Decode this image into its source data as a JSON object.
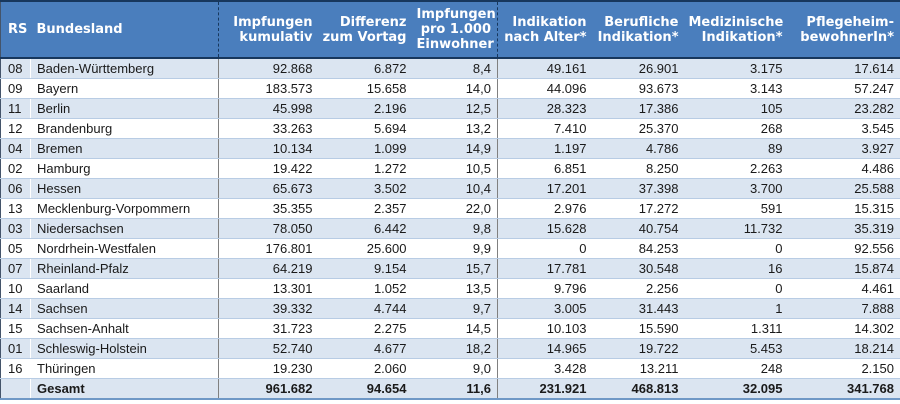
{
  "colors": {
    "header_bg": "#4a7ebd",
    "header_text": "#ffffff",
    "stripe": "#dbe5f1",
    "row_border": "#b8cce4",
    "dark_border": "#17375d",
    "divider": "#808080",
    "edge_border": "#44546a",
    "bottom_border": "#6f98c6",
    "body_text": "#1a1a1a"
  },
  "table": {
    "columns": [
      {
        "key": "rs",
        "label": "RS"
      },
      {
        "key": "bundesland",
        "label": "Bundesland"
      },
      {
        "key": "impfungen-kumulativ",
        "label": "Impfungen\nkumulativ"
      },
      {
        "key": "differenz-zum-vortag",
        "label": "Differenz\nzum Vortag"
      },
      {
        "key": "impfungen-pro-1000-einwohner",
        "label": "Impfungen\npro 1.000\nEinwohner"
      },
      {
        "key": "indikation-nach-alter",
        "label": "Indikation\nnach Alter*"
      },
      {
        "key": "berufliche-indikation",
        "label": "Berufliche\nIndikation*"
      },
      {
        "key": "medizinische-indikation",
        "label": "Medizinische\nIndikation*"
      },
      {
        "key": "pflegeheim-bewohnerin",
        "label": "Pflegeheim-\nbewohnerIn*"
      }
    ],
    "rows": [
      {
        "rs": "08",
        "bundesland": "Baden-Württemberg",
        "values": [
          "92.868",
          "6.872",
          "8,4",
          "49.161",
          "26.901",
          "3.175",
          "17.614"
        ]
      },
      {
        "rs": "09",
        "bundesland": "Bayern",
        "values": [
          "183.573",
          "15.658",
          "14,0",
          "44.096",
          "93.673",
          "3.143",
          "57.247"
        ]
      },
      {
        "rs": "11",
        "bundesland": "Berlin",
        "values": [
          "45.998",
          "2.196",
          "12,5",
          "28.323",
          "17.386",
          "105",
          "23.282"
        ]
      },
      {
        "rs": "12",
        "bundesland": "Brandenburg",
        "values": [
          "33.263",
          "5.694",
          "13,2",
          "7.410",
          "25.370",
          "268",
          "3.545"
        ]
      },
      {
        "rs": "04",
        "bundesland": "Bremen",
        "values": [
          "10.134",
          "1.099",
          "14,9",
          "1.197",
          "4.786",
          "89",
          "3.927"
        ]
      },
      {
        "rs": "02",
        "bundesland": "Hamburg",
        "values": [
          "19.422",
          "1.272",
          "10,5",
          "6.851",
          "8.250",
          "2.263",
          "4.486"
        ]
      },
      {
        "rs": "06",
        "bundesland": "Hessen",
        "values": [
          "65.673",
          "3.502",
          "10,4",
          "17.201",
          "37.398",
          "3.700",
          "25.588"
        ]
      },
      {
        "rs": "13",
        "bundesland": "Mecklenburg-Vorpommern",
        "values": [
          "35.355",
          "2.357",
          "22,0",
          "2.976",
          "17.272",
          "591",
          "15.315"
        ]
      },
      {
        "rs": "03",
        "bundesland": "Niedersachsen",
        "values": [
          "78.050",
          "6.442",
          "9,8",
          "15.628",
          "40.754",
          "11.732",
          "35.319"
        ]
      },
      {
        "rs": "05",
        "bundesland": "Nordrhein-Westfalen",
        "values": [
          "176.801",
          "25.600",
          "9,9",
          "0",
          "84.253",
          "0",
          "92.556"
        ]
      },
      {
        "rs": "07",
        "bundesland": "Rheinland-Pfalz",
        "values": [
          "64.219",
          "9.154",
          "15,7",
          "17.781",
          "30.548",
          "16",
          "15.874"
        ]
      },
      {
        "rs": "10",
        "bundesland": "Saarland",
        "values": [
          "13.301",
          "1.052",
          "13,5",
          "9.796",
          "2.256",
          "0",
          "4.461"
        ]
      },
      {
        "rs": "14",
        "bundesland": "Sachsen",
        "values": [
          "39.332",
          "4.744",
          "9,7",
          "3.005",
          "31.443",
          "1",
          "7.888"
        ]
      },
      {
        "rs": "15",
        "bundesland": "Sachsen-Anhalt",
        "values": [
          "31.723",
          "2.275",
          "14,5",
          "10.103",
          "15.590",
          "1.311",
          "14.302"
        ]
      },
      {
        "rs": "01",
        "bundesland": "Schleswig-Holstein",
        "values": [
          "52.740",
          "4.677",
          "18,2",
          "14.965",
          "19.722",
          "5.453",
          "18.214"
        ]
      },
      {
        "rs": "16",
        "bundesland": "Thüringen",
        "values": [
          "19.230",
          "2.060",
          "9,0",
          "3.428",
          "13.211",
          "248",
          "2.150"
        ]
      }
    ],
    "total": {
      "rs": "",
      "label": "Gesamt",
      "values": [
        "961.682",
        "94.654",
        "11,6",
        "231.921",
        "468.813",
        "32.095",
        "341.768"
      ]
    }
  }
}
